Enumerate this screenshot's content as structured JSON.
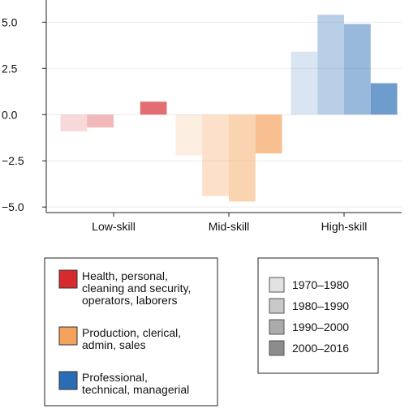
{
  "chart_data": {
    "type": "bar",
    "categories": [
      "Low-skill",
      "Mid-skill",
      "High-skill"
    ],
    "category_colors": [
      "#d62a2f",
      "#f5a25c",
      "#2a6db5"
    ],
    "series": [
      {
        "name": "1970–1980",
        "color": "#e2e2e2",
        "opacity": 0.18,
        "values": [
          -0.9,
          -2.2,
          3.4
        ]
      },
      {
        "name": "1980–1990",
        "color": "#c9c9c9",
        "opacity": 0.33,
        "values": [
          -0.7,
          -4.4,
          5.4
        ]
      },
      {
        "name": "1990–2000",
        "color": "#ababab",
        "opacity": 0.48,
        "values": [
          0,
          -4.7,
          4.9
        ]
      },
      {
        "name": "2000–2016",
        "color": "#8c8c8c",
        "opacity": 0.68,
        "values": [
          0.7,
          -2.1,
          1.7
        ]
      }
    ],
    "ylim": [
      -5.3,
      6.2
    ],
    "yticks": [
      {
        "value": -5,
        "label": "−5.0"
      },
      {
        "value": -2.5,
        "label": "−2.5"
      },
      {
        "value": 0,
        "label": "0.0"
      },
      2.5,
      {
        "value": 5,
        "label": "5.0"
      }
    ],
    "grid": true,
    "group_legend": [
      {
        "lines": [
          "Health, personal,",
          "cleaning and security,",
          "operators, laborers"
        ]
      },
      {
        "lines": [
          "Production, clerical,",
          "admin, sales"
        ]
      },
      {
        "lines": [
          "Professional,",
          "technical, managerial"
        ]
      }
    ]
  }
}
